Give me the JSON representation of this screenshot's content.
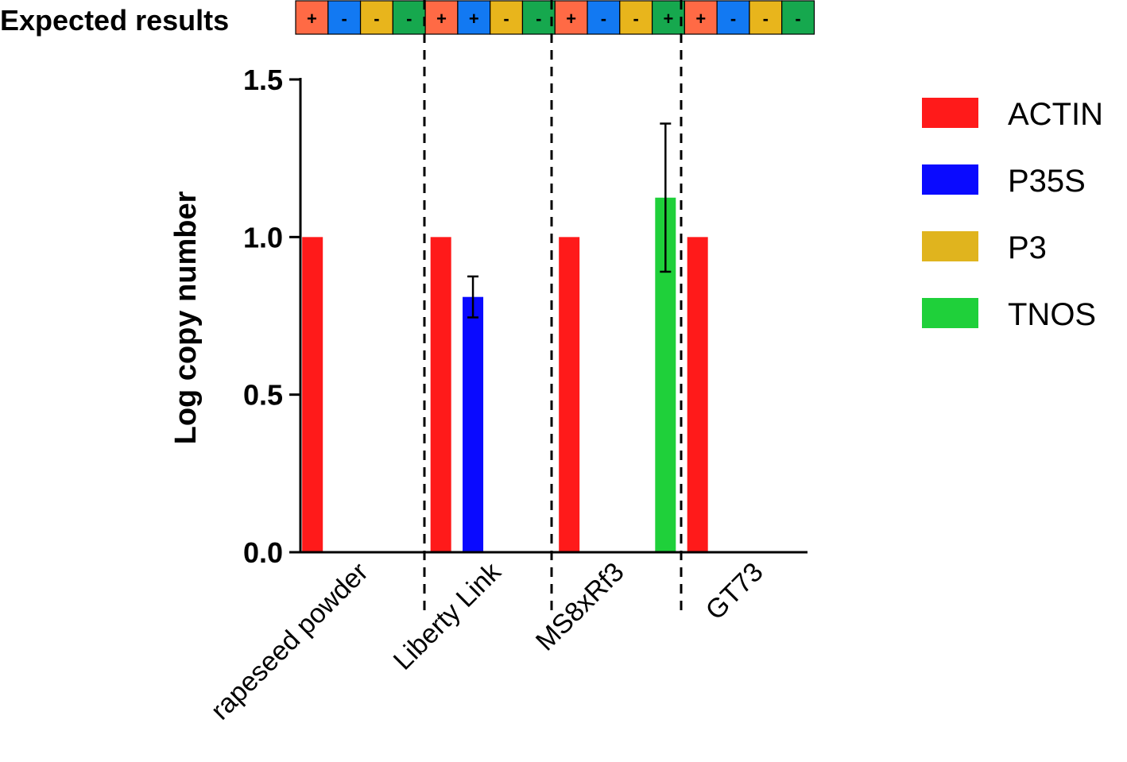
{
  "chart_data": {
    "type": "bar",
    "title": "",
    "xlabel": "",
    "ylabel": "Log copy number",
    "ylim": [
      0,
      1.5
    ],
    "yticks": [
      "0.0",
      "0.5",
      "1.0",
      "1.5"
    ],
    "grid": false,
    "legend_position": "right",
    "categories": [
      "rapeseed powder",
      "Liberty Link",
      "MS8xRf3",
      "GT73"
    ],
    "series": [
      {
        "name": "ACTIN",
        "color": "#ff1a1a",
        "values": [
          1.0,
          1.0,
          1.0,
          1.0
        ],
        "errors": [
          null,
          null,
          null,
          null
        ]
      },
      {
        "name": "P35S",
        "color": "#0a0aff",
        "values": [
          0,
          0.81,
          0,
          0
        ],
        "errors": [
          null,
          0.065,
          null,
          null
        ]
      },
      {
        "name": "P3",
        "color": "#e0b41e",
        "values": [
          0,
          0,
          0,
          0
        ],
        "errors": [
          null,
          null,
          null,
          null
        ]
      },
      {
        "name": "TNOS",
        "color": "#1fd03a",
        "values": [
          0,
          0,
          1.125,
          0
        ],
        "errors": [
          null,
          null,
          0.235,
          null
        ]
      }
    ],
    "expected_results": {
      "label": "Expected results",
      "cell_colors": [
        "#ff6a45",
        "#1279f2",
        "#e8b51c",
        "#16a84e"
      ],
      "signs": [
        [
          "+",
          "-",
          "-",
          "-"
        ],
        [
          "+",
          "+",
          "-",
          "-"
        ],
        [
          "+",
          "-",
          "-",
          "+"
        ],
        [
          "+",
          "-",
          "-",
          "-"
        ]
      ]
    }
  }
}
